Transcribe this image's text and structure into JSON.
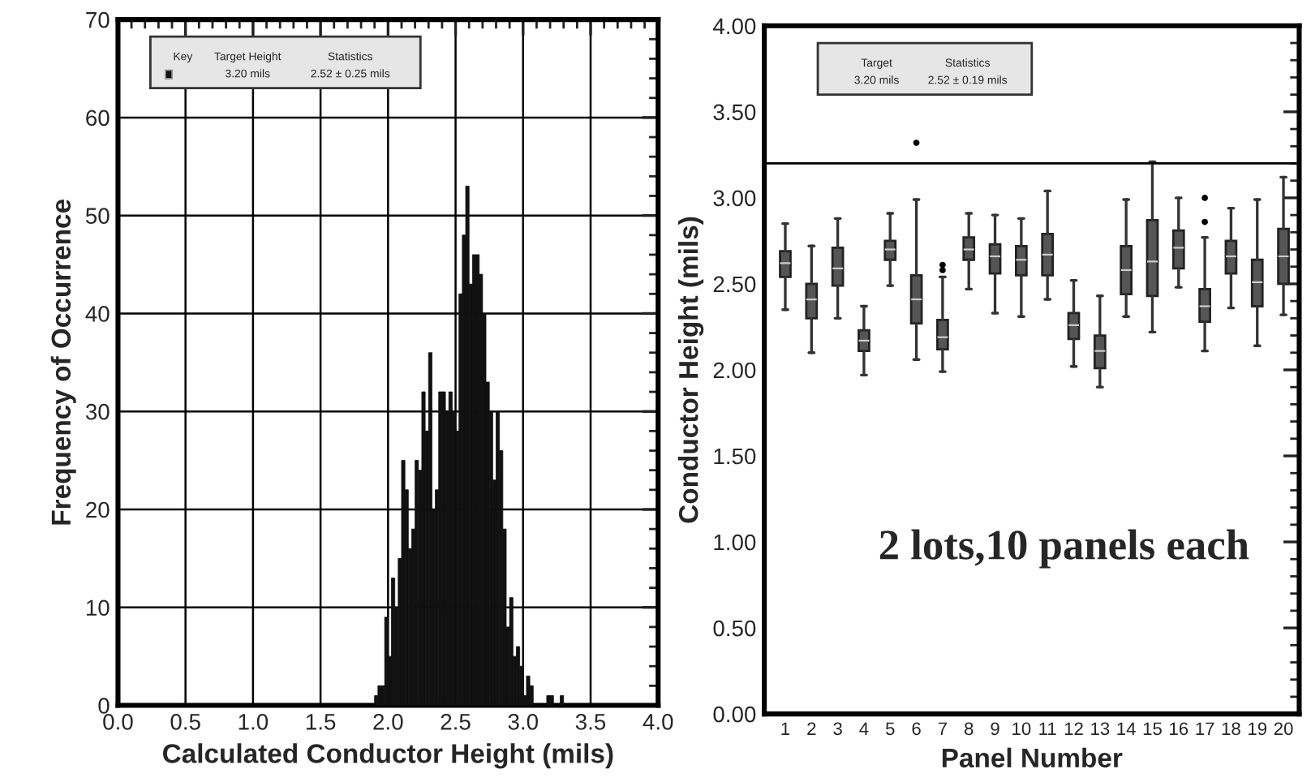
{
  "chart_data": [
    {
      "type": "histogram",
      "xlabel": "Calculated Conductor Height (mils)",
      "ylabel": "Frequency of Occurrence",
      "bins": [
        1.9,
        1.925,
        1.95,
        1.975,
        2.0,
        2.025,
        2.05,
        2.075,
        2.1,
        2.125,
        2.15,
        2.175,
        2.2,
        2.225,
        2.25,
        2.275,
        2.3,
        2.325,
        2.35,
        2.375,
        2.4,
        2.425,
        2.45,
        2.475,
        2.5,
        2.525,
        2.55,
        2.575,
        2.6,
        2.625,
        2.65,
        2.675,
        2.7,
        2.725,
        2.75,
        2.775,
        2.8,
        2.825,
        2.85,
        2.875,
        2.9,
        2.925,
        2.95,
        2.975,
        3.0,
        3.025,
        3.05,
        3.075,
        3.1,
        3.125,
        3.15,
        3.175,
        3.2,
        3.225,
        3.25,
        3.275,
        3.3,
        3.325
      ],
      "values": [
        1,
        2,
        2,
        9,
        5,
        13,
        10,
        15,
        25,
        22,
        16,
        18,
        25,
        24,
        32,
        28,
        36,
        20,
        22,
        32,
        32,
        30,
        32,
        30,
        28,
        42,
        48,
        53,
        43,
        46,
        46,
        44,
        40,
        33,
        30,
        23,
        30,
        26,
        18,
        8,
        11,
        5,
        6,
        4,
        1,
        3,
        2,
        0,
        0,
        0,
        0,
        1,
        1,
        0,
        0,
        1,
        0
      ],
      "color": "#111111",
      "xlim": [
        0,
        4
      ],
      "xticks": [
        {
          "value": 0,
          "label": "0.0"
        },
        {
          "value": 0.5,
          "label": "0.5"
        },
        {
          "value": 1,
          "label": "1.0"
        },
        {
          "value": 1.5,
          "label": "1.5"
        },
        {
          "value": 2,
          "label": "2.0"
        },
        {
          "value": 2.5,
          "label": "2.5"
        },
        {
          "value": 3,
          "label": "3.0"
        },
        {
          "value": 3.5,
          "label": "3.5"
        },
        {
          "value": 4,
          "label": "4.0"
        }
      ],
      "ylim": [
        0,
        70
      ],
      "yticks": [
        0,
        10,
        20,
        30,
        40,
        50,
        60,
        70
      ],
      "grid": true,
      "annotations": [
        "Key",
        "Target Height",
        "Statistics",
        "3.20 mils",
        "2.52 ± 0.25 mils"
      ]
    },
    {
      "type": "box",
      "xlabel": "Panel Number",
      "ylabel": "Conductor Height (mils)",
      "categories": [
        "1",
        "2",
        "3",
        "4",
        "5",
        "6",
        "7",
        "8",
        "9",
        "10",
        "11",
        "12",
        "13",
        "14",
        "15",
        "16",
        "17",
        "18",
        "19",
        "20"
      ],
      "color": "#555555",
      "boxes": [
        {
          "low": 2.35,
          "q1": 2.54,
          "median": 2.62,
          "q3": 2.69,
          "high": 2.85
        },
        {
          "low": 2.1,
          "q1": 2.3,
          "median": 2.41,
          "q3": 2.5,
          "high": 2.72
        },
        {
          "low": 2.3,
          "q1": 2.49,
          "median": 2.59,
          "q3": 2.71,
          "high": 2.88
        },
        {
          "low": 1.97,
          "q1": 2.11,
          "median": 2.17,
          "q3": 2.23,
          "high": 2.37
        },
        {
          "low": 2.49,
          "q1": 2.64,
          "median": 2.7,
          "q3": 2.75,
          "high": 2.91
        },
        {
          "low": 2.06,
          "q1": 2.27,
          "median": 2.41,
          "q3": 2.55,
          "high": 2.99,
          "outliers": [
            3.32
          ]
        },
        {
          "low": 1.99,
          "q1": 2.12,
          "median": 2.19,
          "q3": 2.29,
          "high": 2.54,
          "outliers": [
            2.58,
            2.61
          ]
        },
        {
          "low": 2.47,
          "q1": 2.64,
          "median": 2.7,
          "q3": 2.77,
          "high": 2.91
        },
        {
          "low": 2.33,
          "q1": 2.56,
          "median": 2.66,
          "q3": 2.73,
          "high": 2.9
        },
        {
          "low": 2.31,
          "q1": 2.55,
          "median": 2.64,
          "q3": 2.72,
          "high": 2.88
        },
        {
          "low": 2.41,
          "q1": 2.55,
          "median": 2.67,
          "q3": 2.79,
          "high": 3.04
        },
        {
          "low": 2.02,
          "q1": 2.18,
          "median": 2.26,
          "q3": 2.33,
          "high": 2.52
        },
        {
          "low": 1.9,
          "q1": 2.01,
          "median": 2.11,
          "q3": 2.2,
          "high": 2.43
        },
        {
          "low": 2.31,
          "q1": 2.44,
          "median": 2.58,
          "q3": 2.72,
          "high": 2.99
        },
        {
          "low": 2.22,
          "q1": 2.43,
          "median": 2.63,
          "q3": 2.87,
          "high": 3.21
        },
        {
          "low": 2.48,
          "q1": 2.59,
          "median": 2.71,
          "q3": 2.81,
          "high": 3.0
        },
        {
          "low": 2.11,
          "q1": 2.28,
          "median": 2.37,
          "q3": 2.47,
          "high": 2.77,
          "outliers": [
            2.86,
            3.0
          ]
        },
        {
          "low": 2.36,
          "q1": 2.56,
          "median": 2.66,
          "q3": 2.75,
          "high": 2.94
        },
        {
          "low": 2.14,
          "q1": 2.37,
          "median": 2.51,
          "q3": 2.64,
          "high": 2.99
        },
        {
          "low": 2.32,
          "q1": 2.5,
          "median": 2.66,
          "q3": 2.82,
          "high": 3.12
        }
      ],
      "ylim": [
        0,
        4
      ],
      "yticks": [
        {
          "value": 0,
          "label": "0.00"
        },
        {
          "value": 0.5,
          "label": "0.50"
        },
        {
          "value": 1,
          "label": "1.00"
        },
        {
          "value": 1.5,
          "label": "1.50"
        },
        {
          "value": 2,
          "label": "2.00"
        },
        {
          "value": 2.5,
          "label": "2.50"
        },
        {
          "value": 3,
          "label": "3.00"
        },
        {
          "value": 3.5,
          "label": "3.50"
        },
        {
          "value": 4,
          "label": "4.00"
        }
      ],
      "grid": false,
      "ref_lines": [
        {
          "axis": "y",
          "value": 3.2,
          "color": "#000000"
        }
      ],
      "annotations": [
        "Target",
        "Statistics",
        "3.20 mils",
        "2.52 ± 0.19 mils",
        "2 lots,10 panels each"
      ]
    }
  ]
}
